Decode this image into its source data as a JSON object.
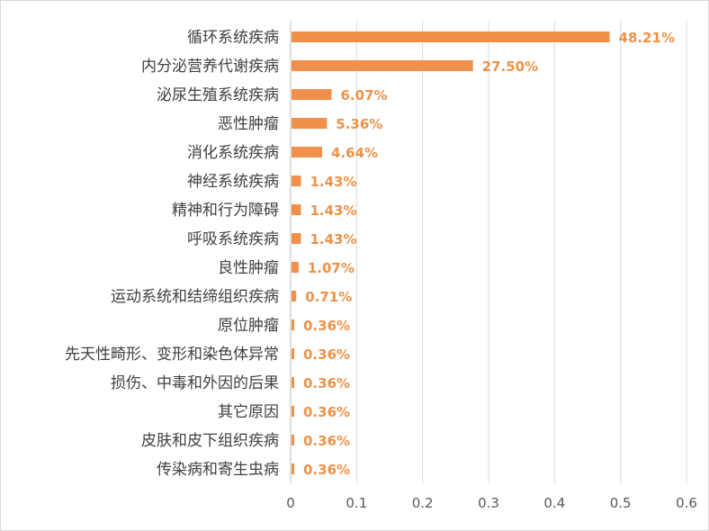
{
  "chart_data": {
    "type": "bar",
    "orientation": "horizontal",
    "categories": [
      "循环系统疾病",
      "内分泌营养代谢疾病",
      "泌尿生殖系统疾病",
      "恶性肿瘤",
      "消化系统疾病",
      "神经系统疾病",
      "精神和行为障碍",
      "呼吸系统疾病",
      "良性肿瘤",
      "运动系统和结缔组织疾病",
      "原位肿瘤",
      "先天性畸形、变形和染色体异常",
      "损伤、中毒和外因的后果",
      "其它原因",
      "皮肤和皮下组织疾病",
      "传染病和寄生虫病"
    ],
    "values": [
      0.4821,
      0.275,
      0.0607,
      0.0536,
      0.0464,
      0.0143,
      0.0143,
      0.0143,
      0.0107,
      0.0071,
      0.0036,
      0.0036,
      0.0036,
      0.0036,
      0.0036,
      0.0036
    ],
    "data_labels": [
      "48.21%",
      "27.50%",
      "6.07%",
      "5.36%",
      "4.64%",
      "1.43%",
      "1.43%",
      "1.43%",
      "1.07%",
      "0.71%",
      "0.36%",
      "0.36%",
      "0.36%",
      "0.36%",
      "0.36%",
      "0.36%"
    ],
    "xlim": [
      0,
      0.6
    ],
    "xticks": [
      "0",
      "0.1",
      "0.2",
      "0.3",
      "0.4",
      "0.5",
      "0.6"
    ],
    "grid": "vertical",
    "bar_color": "#f0904a",
    "label_color": "#ed9248",
    "title": "",
    "xlabel": "",
    "ylabel": ""
  }
}
